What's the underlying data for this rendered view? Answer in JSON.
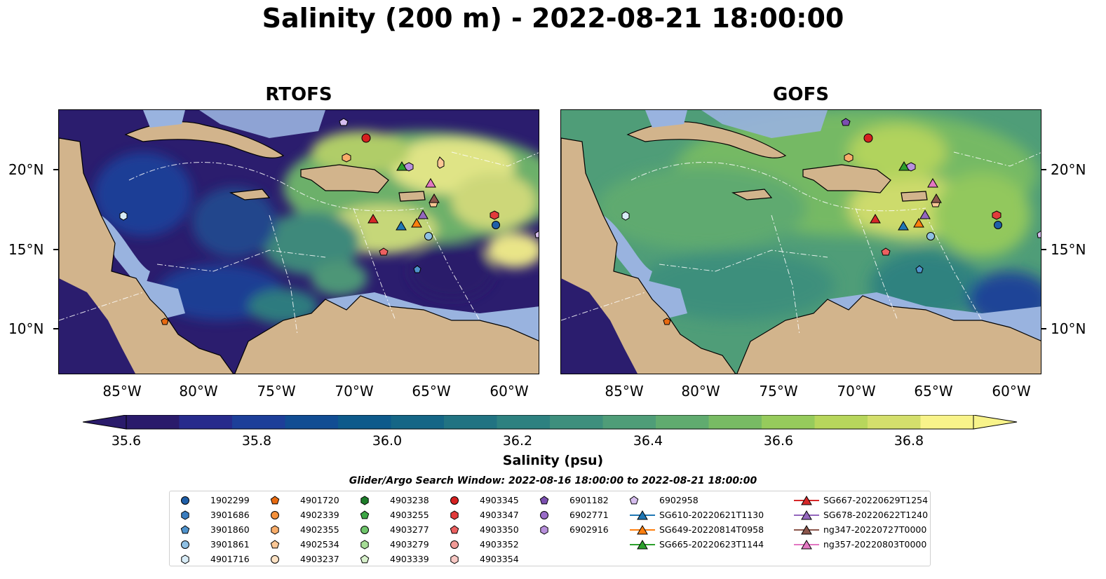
{
  "title": "Salinity (200 m) - 2022-08-21 18:00:00",
  "panels": [
    {
      "title": "RTOFS"
    },
    {
      "title": "GOFS"
    }
  ],
  "lat_ticks": [
    "20°N",
    "15°N",
    "10°N"
  ],
  "lon_ticks": [
    "85°W",
    "80°W",
    "75°W",
    "70°W",
    "65°W",
    "60°W"
  ],
  "colorbar": {
    "label": "Salinity (psu)",
    "tick_labels": [
      "35.6",
      "35.8",
      "36.0",
      "36.2",
      "36.4",
      "36.6",
      "36.8"
    ],
    "colors": [
      "#2a1b6b",
      "#272b8c",
      "#1d3f99",
      "#114d93",
      "#0d5a8b",
      "#156686",
      "#217382",
      "#2d8180",
      "#3e8f7d",
      "#4f9d78",
      "#60ab6f",
      "#78bb64",
      "#96cb5c",
      "#b7d65c",
      "#d4df6c",
      "#f8f38a"
    ]
  },
  "search_window": "Glider/Argo Search Window: 2022-08-16 18:00:00 to 2022-08-21 18:00:00",
  "legend": [
    {
      "label": "1902299",
      "marker": "circle",
      "color": "#1f5fa8"
    },
    {
      "label": "3901686",
      "marker": "hexagon",
      "color": "#3b7dbf"
    },
    {
      "label": "3901860",
      "marker": "pentagon",
      "color": "#4f93cc"
    },
    {
      "label": "3901861",
      "marker": "circle",
      "color": "#8fc0e3"
    },
    {
      "label": "4901716",
      "marker": "hexagon",
      "color": "#d8ecf7"
    },
    {
      "label": "4901720",
      "marker": "pentagon",
      "color": "#e86a10"
    },
    {
      "label": "4902339",
      "marker": "circle",
      "color": "#f5913b"
    },
    {
      "label": "4902355",
      "marker": "hexagon",
      "color": "#f8ad6a"
    },
    {
      "label": "4902534",
      "marker": "pentagon",
      "color": "#fbc795"
    },
    {
      "label": "4903237",
      "marker": "circle",
      "color": "#fde2c4"
    },
    {
      "label": "4903238",
      "marker": "hexagon",
      "color": "#1e7d2a"
    },
    {
      "label": "4903255",
      "marker": "pentagon",
      "color": "#3da545"
    },
    {
      "label": "4903277",
      "marker": "circle",
      "color": "#6fc56b"
    },
    {
      "label": "4903279",
      "marker": "hexagon",
      "color": "#a6dc96"
    },
    {
      "label": "4903339",
      "marker": "pentagon",
      "color": "#d8f1cc"
    },
    {
      "label": "4903345",
      "marker": "circle",
      "color": "#d62020"
    },
    {
      "label": "4903347",
      "marker": "hexagon",
      "color": "#e23b3b"
    },
    {
      "label": "4903350",
      "marker": "pentagon",
      "color": "#ec6060"
    },
    {
      "label": "4903352",
      "marker": "circle",
      "color": "#f19a96"
    },
    {
      "label": "4903354",
      "marker": "hexagon",
      "color": "#f8c8c4"
    },
    {
      "label": "6901182",
      "marker": "pentagon",
      "color": "#7b4fb0"
    },
    {
      "label": "6902771",
      "marker": "circle",
      "color": "#9a6cc8"
    },
    {
      "label": "6902916",
      "marker": "hexagon",
      "color": "#b890dc"
    },
    {
      "label": "6902958",
      "marker": "pentagon",
      "color": "#d6bdee"
    },
    {
      "label": "SG610-20220621T1130",
      "marker": "triangle",
      "color": "#1f77b4"
    },
    {
      "label": "SG649-20220814T0958",
      "marker": "triangle",
      "color": "#ff7f0e"
    },
    {
      "label": "SG665-20220623T1144",
      "marker": "triangle",
      "color": "#2ca02c"
    },
    {
      "label": "SG667-20220629T1254",
      "marker": "triangle",
      "color": "#d62728"
    },
    {
      "label": "SG678-20220622T1240",
      "marker": "triangle",
      "color": "#9467bd"
    },
    {
      "label": "ng347-20220727T0000",
      "marker": "triangle",
      "color": "#8c564b"
    },
    {
      "label": "ng357-20220803T0000",
      "marker": "triangle",
      "color": "#e377c2"
    }
  ],
  "map_data": {
    "lon_range": [
      -89,
      -58
    ],
    "lat_range": [
      7,
      24
    ],
    "land_color": "#d2b48c",
    "shelf_color": "#99b3df",
    "stations": [
      {
        "id": "1902299",
        "lon": -60.9,
        "lat": 16.5
      },
      {
        "id": "3901686",
        "lon": -60.9,
        "lat": 16.5
      },
      {
        "id": "3901860",
        "lon": -66.1,
        "lat": 13.7
      },
      {
        "id": "3901861",
        "lon": -65.4,
        "lat": 15.8
      },
      {
        "id": "4901716",
        "lon": -84.9,
        "lat": 17.1
      },
      {
        "id": "4901720",
        "lon": -82.1,
        "lat": 10.4
      },
      {
        "id": "4902355",
        "lon": -70.5,
        "lat": 20.8
      },
      {
        "id": "4903255",
        "lon": -67.0,
        "lat": 20.1
      },
      {
        "id": "4903345",
        "lon": -69.2,
        "lat": 21.9
      },
      {
        "id": "4903347",
        "lon": -61.0,
        "lat": 17.1
      },
      {
        "id": "4903350",
        "lon": -68.0,
        "lat": 14.8
      },
      {
        "id": "6901182",
        "lon": -70.8,
        "lat": 22.9
      },
      {
        "id": "6902916",
        "lon": -66.5,
        "lat": 20.1
      },
      {
        "id": "6902958",
        "lon": -58.3,
        "lat": 15.9
      },
      {
        "id": "SG610-20220621T1130",
        "lon": -66.8,
        "lat": 16.5
      },
      {
        "id": "SG649-20220814T0958",
        "lon": -65.9,
        "lat": 16.7
      },
      {
        "id": "SG665-20220623T1144",
        "lon": -67.1,
        "lat": 20.2
      },
      {
        "id": "SG667-20220629T1254",
        "lon": -68.7,
        "lat": 16.9
      },
      {
        "id": "SG678-20220622T1240",
        "lon": -65.5,
        "lat": 17.1
      },
      {
        "id": "ng347-20220727T0000",
        "lon": -64.9,
        "lat": 18.0
      },
      {
        "id": "ng357-20220803T0000",
        "lon": -65.0,
        "lat": 19.1
      }
    ]
  }
}
